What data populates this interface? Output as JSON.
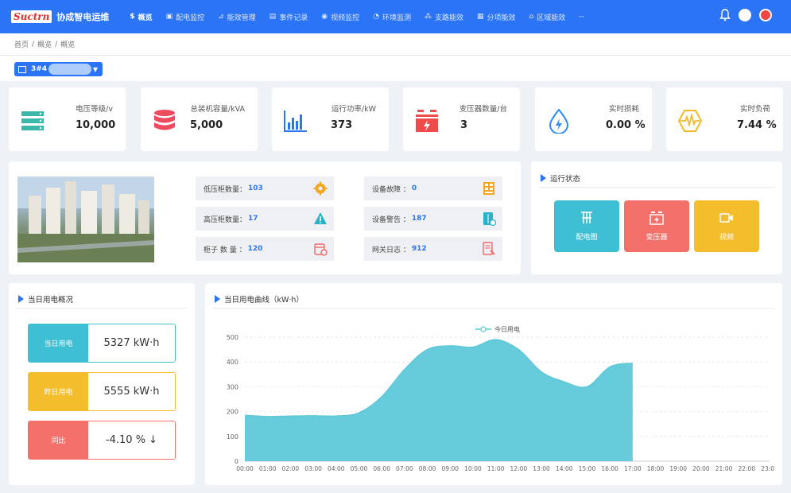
{
  "header": {
    "logo_mark": "Suctrn",
    "app_title": "协成智电运维",
    "nav": [
      {
        "label": "概览",
        "icon": "dollar-icon",
        "active": true
      },
      {
        "label": "配电监控",
        "icon": "monitor-icon"
      },
      {
        "label": "能效管理",
        "icon": "chart-icon"
      },
      {
        "label": "事件记录",
        "icon": "doc-icon"
      },
      {
        "label": "视频监控",
        "icon": "pin-icon"
      },
      {
        "label": "环境监测",
        "icon": "gauge-icon"
      },
      {
        "label": "支路能效",
        "icon": "branch-icon"
      },
      {
        "label": "分项能效",
        "icon": "grid-icon"
      },
      {
        "label": "区域能效",
        "icon": "home-icon"
      },
      {
        "label": "--",
        "icon": ""
      }
    ]
  },
  "breadcrumb": [
    "首页",
    "/",
    "概览",
    "/",
    "概览"
  ],
  "site_select": {
    "value": "3#4"
  },
  "kpis": [
    {
      "label": "电压等级/v",
      "value": "10,000",
      "icon": "server-icon",
      "color": "#3cb8a9"
    },
    {
      "label": "总装机容量/kVA",
      "value": "5,000",
      "icon": "database-icon",
      "color": "#ef4b5f"
    },
    {
      "label": "运行功率/kW",
      "value": "373",
      "icon": "bar-chart-icon",
      "color": "#2a74f5"
    },
    {
      "label": "变压器数量/台",
      "value": "3",
      "icon": "transformer-icon",
      "color": "#ef4b4b"
    },
    {
      "label": "实时损耗",
      "value": "0.00 %",
      "icon": "energy-drop-icon",
      "color": "#2a8cf5"
    },
    {
      "label": "实时负荷",
      "value": "7.44 %",
      "icon": "pulse-hex-icon",
      "color": "#f5b82a"
    }
  ],
  "stats": [
    {
      "label": "低压柜数量：",
      "value": "103",
      "icon": "gear-icon",
      "color": "#f5a623"
    },
    {
      "label": "设备故障 ：",
      "value": "0",
      "icon": "panel-icon",
      "color": "#f5a623"
    },
    {
      "label": "高压柜数量：",
      "value": "17",
      "icon": "warning-icon",
      "color": "#29b2c8"
    },
    {
      "label": "设备警告 ：",
      "value": "187",
      "icon": "cabinet-icon",
      "color": "#29b2c8"
    },
    {
      "label": "柜子 数 量 ：",
      "value": "120",
      "icon": "calendar-icon",
      "color": "#f06a6a"
    },
    {
      "label": "网关日志 ：",
      "value": "912",
      "icon": "log-icon",
      "color": "#f06a6a"
    }
  ],
  "run_status": {
    "title": "运行状态",
    "buttons": [
      {
        "label": "配电图",
        "icon": "distribution-icon",
        "color": "#3fbfd3"
      },
      {
        "label": "变压器",
        "icon": "transformer-icon",
        "color": "#f4706a"
      },
      {
        "label": "视频",
        "icon": "video-icon",
        "color": "#f4bd2c"
      }
    ]
  },
  "daily_overview": {
    "title": "当日用电概况",
    "rows": [
      {
        "label": "当日用电",
        "value": "5327 kW·h",
        "color": "#3fbfd3"
      },
      {
        "label": "昨日用电",
        "value": "5555 kW·h",
        "color": "#f4bd2c"
      },
      {
        "label": "同比",
        "value": "-4.10 % ↓",
        "color": "#f4706a"
      }
    ]
  },
  "curve": {
    "title": "当日用电曲线（kW·h）"
  },
  "chart_data": {
    "type": "area",
    "title": "",
    "legend": "top-center",
    "x": [
      "00:00",
      "01:00",
      "02:00",
      "03:00",
      "04:00",
      "05:00",
      "06:00",
      "07:00",
      "08:00",
      "09:00",
      "10:00",
      "11:00",
      "12:00",
      "13:00",
      "14:00",
      "15:00",
      "16:00",
      "17:00",
      "18:00",
      "19:00",
      "20:00",
      "21:00",
      "22:00",
      "23:00"
    ],
    "series": [
      {
        "name": "今日用电",
        "color": "#5ec8d8",
        "values": [
          185,
          180,
          182,
          183,
          182,
          195,
          260,
          370,
          450,
          465,
          460,
          490,
          450,
          360,
          320,
          300,
          380,
          395,
          null,
          null,
          null,
          null,
          null,
          null
        ]
      }
    ],
    "ylim": [
      0,
      500
    ],
    "yticks": [
      0,
      100,
      200,
      300,
      400,
      500
    ],
    "grid": true
  }
}
